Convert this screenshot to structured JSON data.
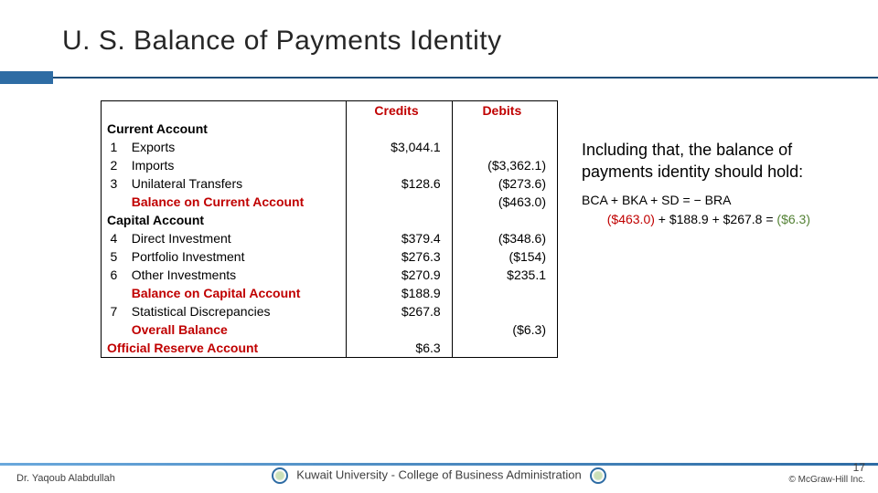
{
  "title": "U. S. Balance of Payments Identity",
  "table": {
    "headers": {
      "credits": "Credits",
      "debits": "Debits"
    },
    "sections": {
      "current": "Current Account",
      "capital": "Capital Account",
      "reserve": "Official Reserve Account"
    },
    "rows": {
      "r1": {
        "n": "1",
        "label": "Exports",
        "credit": "$3,044.1",
        "debit": ""
      },
      "r2": {
        "n": "2",
        "label": "Imports",
        "credit": "",
        "debit": "($3,362.1)"
      },
      "r3": {
        "n": "3",
        "label": "Unilateral Transfers",
        "credit": "$128.6",
        "debit": "($273.6)"
      },
      "bca": {
        "label": "Balance on Current Account",
        "debit": "($463.0)"
      },
      "r4": {
        "n": "4",
        "label": "Direct Investment",
        "credit": "$379.4",
        "debit": "($348.6)"
      },
      "r5": {
        "n": "5",
        "label": "Portfolio Investment",
        "credit": "$276.3",
        "debit": "($154)"
      },
      "r6": {
        "n": "6",
        "label": "Other Investments",
        "credit": "$270.9",
        "debit": "$235.1"
      },
      "bka": {
        "label": "Balance on Capital Account",
        "credit": "$188.9"
      },
      "r7": {
        "n": "7",
        "label": "Statistical Discrepancies",
        "credit": "$267.8",
        "debit": ""
      },
      "overall": {
        "label": "Overall Balance",
        "debit": "($6.3)"
      },
      "reserve_val": "$6.3"
    }
  },
  "side": {
    "para": "Including that, the balance of payments identity should hold:",
    "eq": "BCA + BKA + SD = − BRA",
    "calc_lhs_red": "($463.0)",
    "calc_mid": " + $188.9 + $267.8 = ",
    "calc_rhs_green": "($6.3)"
  },
  "footer": {
    "author": "Dr. Yaqoub Alabdullah",
    "center": "Kuwait University - College of Business Administration",
    "page": "17",
    "copyright": "© McGraw-Hill Inc."
  },
  "colors": {
    "accent": "#2e6ca4",
    "rule": "#1f4e79",
    "emphasis_red": "#c00000",
    "emphasis_green": "#548235"
  }
}
